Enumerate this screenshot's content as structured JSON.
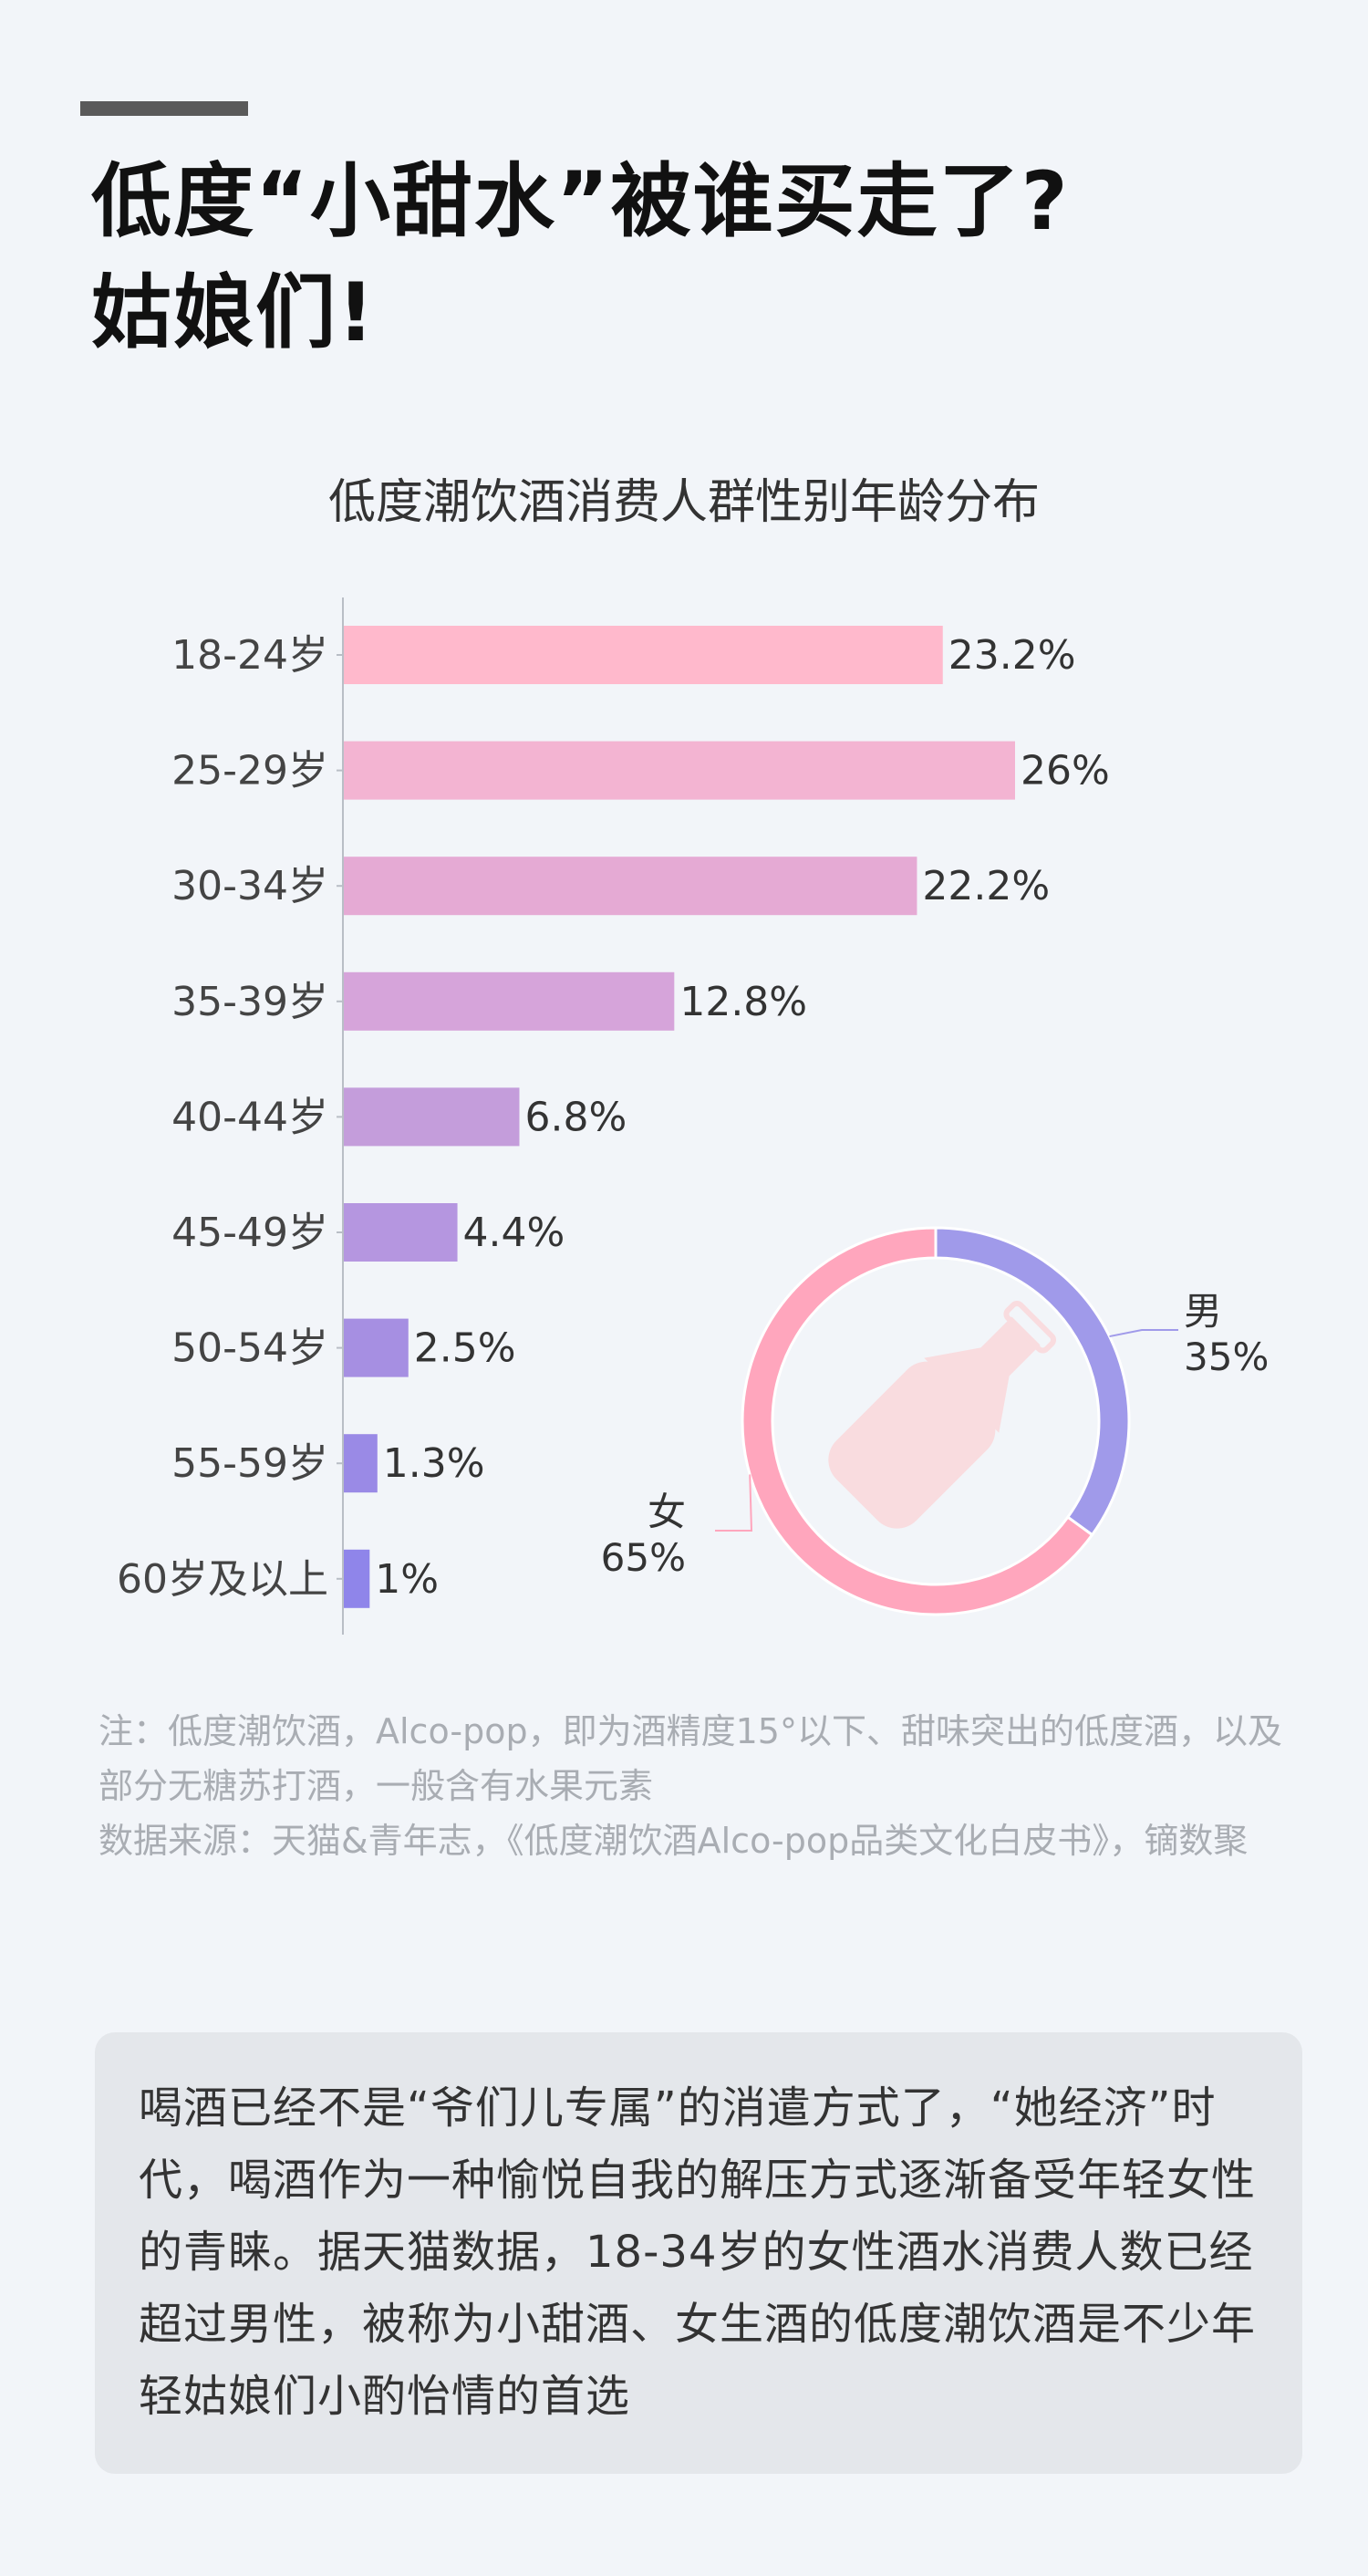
{
  "headline": {
    "line1": "低度“小甜水”被谁买走了?",
    "line2": "姑娘们!"
  },
  "chart_data": [
    {
      "type": "bar",
      "orientation": "horizontal",
      "title": "低度潮饮酒消费人群性别年龄分布",
      "categories": [
        "18-24岁",
        "25-29岁",
        "30-34岁",
        "35-39岁",
        "40-44岁",
        "45-49岁",
        "50-54岁",
        "55-59岁",
        "60岁及以上"
      ],
      "values": [
        23.2,
        26,
        22.2,
        12.8,
        6.8,
        4.4,
        2.5,
        1.3,
        1
      ],
      "value_labels": [
        "23.2%",
        "26%",
        "22.2%",
        "12.8%",
        "6.8%",
        "4.4%",
        "2.5%",
        "1.3%",
        "1%"
      ],
      "xlim": [
        0,
        26
      ],
      "colors": [
        "#ffb9cc",
        "#f3b4d2",
        "#e5aad4",
        "#d6a4da",
        "#c49ddb",
        "#b596e0",
        "#a68fe2",
        "#9a8ae6",
        "#8f85ea"
      ]
    },
    {
      "type": "pie",
      "style": "donut",
      "categories": [
        "男",
        "女"
      ],
      "values": [
        35,
        65
      ],
      "value_labels": [
        "35%",
        "65%"
      ],
      "colors": [
        "#a09aea",
        "#ffa6bd"
      ]
    }
  ],
  "colors": {
    "icon": "#f9dcdf",
    "background": "#f2f5f9"
  },
  "note": {
    "line1": "注：低度潮饮酒，Alco-pop，即为酒精度15°以下、甜味突出的低度酒，以及部分无糖苏打酒，一般含有水果元素",
    "line2": "数据来源：天猫&青年志，《低度潮饮酒Alco-pop品类文化白皮书》，镝数聚"
  },
  "summary": "喝酒已经不是“爷们儿专属”的消遣方式了，“她经济”时代，喝酒作为一种愉悦自我的解压方式逐渐备受年轻女性的青睐。据天猫数据，18-34岁的女性酒水消费人数已经超过男性，被称为小甜酒、女生酒的低度潮饮酒是不少年轻姑娘们小酌怡情的首选"
}
